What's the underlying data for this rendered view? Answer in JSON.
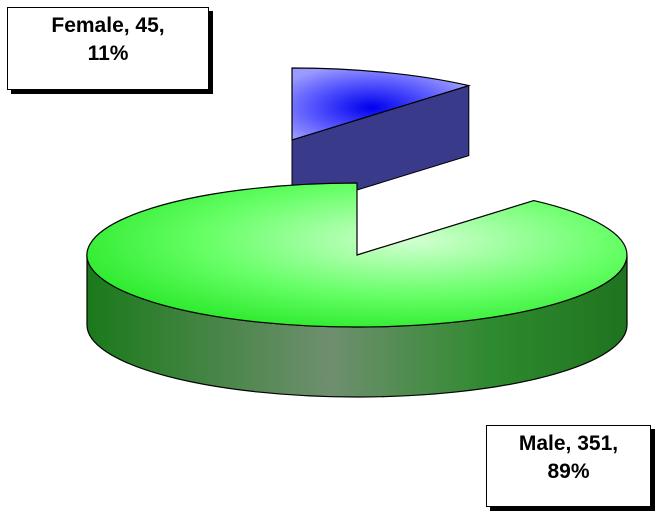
{
  "chart_data": {
    "type": "pie",
    "style": "3d-exploded",
    "categories": [
      "Female",
      "Male"
    ],
    "values": [
      45,
      351
    ],
    "percents": [
      11,
      89
    ],
    "colors": [
      "#4b4bff",
      "#33ee33"
    ],
    "title": "",
    "legend": "none",
    "labels": [
      {
        "category": "Female",
        "line1": "Female, 45,",
        "line2": "11%"
      },
      {
        "category": "Male",
        "line1": "Male, 351,",
        "line2": "89%"
      }
    ]
  }
}
